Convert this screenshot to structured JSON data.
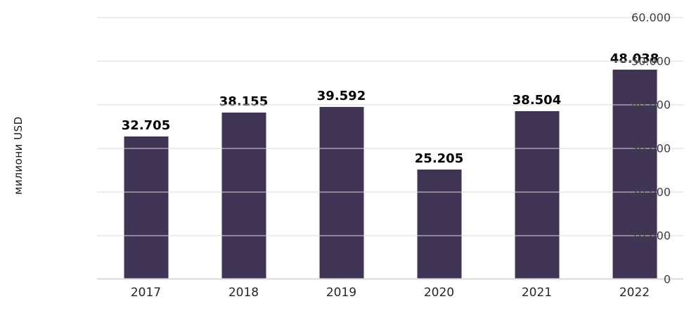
{
  "chart_data": {
    "type": "bar",
    "categories": [
      "2017",
      "2018",
      "2019",
      "2020",
      "2021",
      "2022"
    ],
    "values": [
      32705,
      38155,
      39592,
      25205,
      38504,
      48038
    ],
    "value_labels": [
      "32.705",
      "38.155",
      "39.592",
      "25.205",
      "38.504",
      "48.038"
    ],
    "title": "",
    "xlabel": "",
    "ylabel": "милиони USD",
    "ylim": [
      0,
      60000
    ],
    "ytick_step": 10000,
    "ytick_labels": [
      "0",
      "10.000",
      "20.000",
      "30.000",
      "40.000",
      "50.000",
      "60.000"
    ],
    "grid": true,
    "legend": "none",
    "bar_color": "#3F3454",
    "gridline_color": "#D9D9D9",
    "axis_line_color": "#D9D9D9"
  }
}
